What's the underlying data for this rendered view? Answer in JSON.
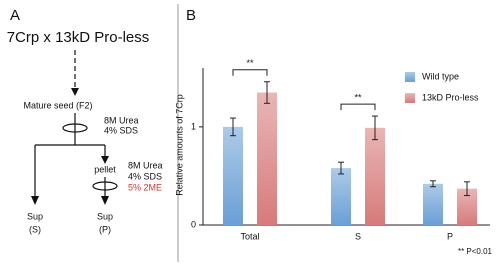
{
  "panel_a": {
    "label": "A",
    "cross": "7Crp x 13kD Pro-less",
    "seed": "Mature seed (F2)",
    "step1": [
      "8M Urea",
      "4% SDS"
    ],
    "pellet": "pellet",
    "step2": [
      "8M Urea",
      "4% SDS",
      "5% 2ME"
    ],
    "sup_s": [
      "Sup",
      "(S)"
    ],
    "sup_p": [
      "Sup",
      "(P)"
    ]
  },
  "chart_data": {
    "type": "bar",
    "panel_label": "B",
    "y_label": "Relative amounts of 7Crp",
    "categories": [
      "Total",
      "S",
      "P"
    ],
    "series": [
      {
        "name": "Wild type",
        "color": "#6a9fd6",
        "values": [
          1.0,
          0.58,
          0.42
        ],
        "errors": [
          0.09,
          0.06,
          0.03
        ]
      },
      {
        "name": "13kD Pro-less",
        "color": "#d77a7a",
        "values": [
          1.35,
          0.99,
          0.37
        ],
        "errors": [
          0.11,
          0.12,
          0.07
        ]
      }
    ],
    "ylim": [
      0,
      1.6
    ],
    "yticks": [
      0,
      1
    ],
    "annotations": [
      "**",
      "**"
    ],
    "footnote": "** P<0.01"
  }
}
